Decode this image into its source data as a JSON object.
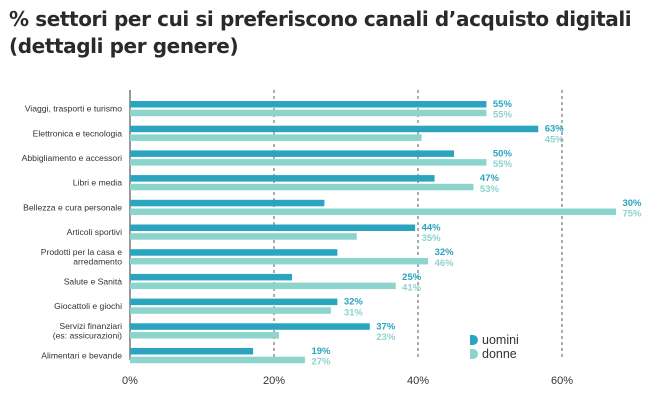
{
  "chart_data": {
    "type": "bar",
    "orientation": "horizontal",
    "title": "% settori per cui si preferiscono canali d’acquisto digitali (dettagli per genere)",
    "categories": [
      "Viaggi, trasporti e turismo",
      "Elettronica e tecnologia",
      "Abbigliamento e accessori",
      "Libri e media",
      "Bellezza e cura personale",
      "Articoli sportivi",
      "Prodotti per la casa e arredamento",
      "Salute e Sanità",
      "Giocattoli e giochi",
      "Servizi finanziari (es: assicurazioni)",
      "Alimentari e bevande"
    ],
    "category_lines": [
      [
        "Viaggi, trasporti e turismo"
      ],
      [
        "Elettronica e tecnologia"
      ],
      [
        "Abbigliamento e accessori"
      ],
      [
        "Libri e media"
      ],
      [
        "Bellezza e cura personale"
      ],
      [
        "Articoli sportivi"
      ],
      [
        "Prodotti per la casa e",
        "arredamento"
      ],
      [
        "Salute e Sanità"
      ],
      [
        "Giocattoli e giochi"
      ],
      [
        "Servizi finanziari",
        "(es: assicurazioni)"
      ],
      [
        "Alimentari e bevande"
      ]
    ],
    "series": [
      {
        "name": "uomini",
        "color": "#2aa4bf",
        "values": [
          55,
          63,
          50,
          47,
          30,
          44,
          32,
          25,
          32,
          37,
          19
        ],
        "labels": [
          "55%",
          "63%",
          "50%",
          "47%",
          "30%",
          "44%",
          "32%",
          "25%",
          "32%",
          "37%",
          "19%"
        ]
      },
      {
        "name": "donne",
        "color": "#8dd4cc",
        "values": [
          55,
          45,
          55,
          53,
          75,
          35,
          46,
          41,
          31,
          23,
          27
        ],
        "labels": [
          "55%",
          "45%",
          "55%",
          "53%",
          "75%",
          "35%",
          "46%",
          "41%",
          "31%",
          "23%",
          "27%"
        ]
      }
    ],
    "x_ticks": [
      0,
      20,
      40,
      60
    ],
    "x_tick_labels": [
      "0%",
      "20%",
      "40%",
      "60%"
    ],
    "xlim": [
      0,
      70
    ],
    "grid": "vertical dashed",
    "legend_position": "bottom-right",
    "bar_note": "bars are drawn with a compressed visual scale relative to labels"
  },
  "style": {
    "title_color": "#2a2a2a",
    "grid_color": "#333333"
  }
}
